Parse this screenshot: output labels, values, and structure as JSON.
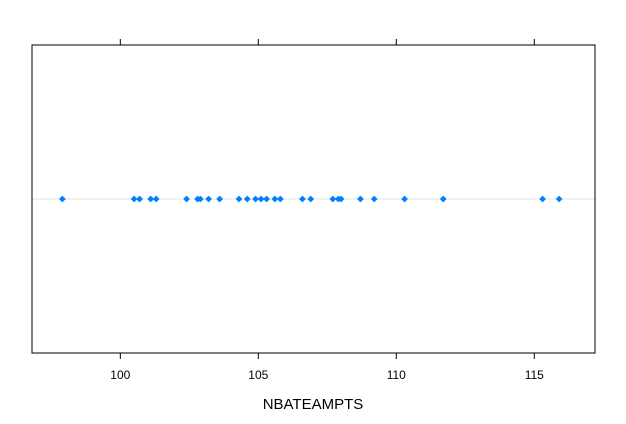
{
  "chart_data": {
    "type": "scatter",
    "title": "",
    "xlabel": "NBATEAMPTS",
    "ylabel": "",
    "xlim": [
      96.8,
      117.2
    ],
    "x_ticks": [
      100,
      105,
      110,
      115
    ],
    "tick_labels": [
      "100",
      "105",
      "110",
      "115"
    ],
    "grid": false,
    "reference_line": true,
    "values": [
      97.9,
      100.5,
      100.7,
      101.1,
      101.3,
      102.4,
      102.8,
      102.9,
      103.2,
      103.6,
      104.3,
      104.6,
      104.9,
      105.1,
      105.3,
      105.6,
      105.8,
      106.6,
      106.9,
      107.7,
      107.9,
      108.0,
      108.7,
      109.2,
      110.3,
      111.7,
      115.3,
      115.9
    ]
  },
  "colors": {
    "point": "#0080ff",
    "reference_line": "#e6e6e6",
    "frame": "#000000"
  }
}
